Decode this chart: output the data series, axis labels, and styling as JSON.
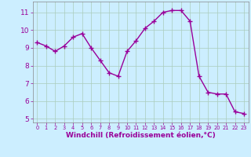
{
  "x": [
    0,
    1,
    2,
    3,
    4,
    5,
    6,
    7,
    8,
    9,
    10,
    11,
    12,
    13,
    14,
    15,
    16,
    17,
    18,
    19,
    20,
    21,
    22,
    23
  ],
  "y": [
    9.3,
    9.1,
    8.8,
    9.1,
    9.6,
    9.8,
    9.0,
    8.3,
    7.6,
    7.4,
    8.8,
    9.4,
    10.1,
    10.5,
    11.0,
    11.1,
    11.1,
    10.5,
    7.4,
    6.5,
    6.4,
    6.4,
    5.4,
    5.3
  ],
  "line_color": "#990099",
  "marker": "+",
  "marker_size": 4,
  "marker_linewidth": 1.0,
  "bg_color": "#cceeff",
  "grid_color": "#aaccbb",
  "xlabel": "Windchill (Refroidissement éolien,°C)",
  "xlabel_color": "#990099",
  "ylim": [
    4.8,
    11.6
  ],
  "yticks": [
    5,
    6,
    7,
    8,
    9,
    10,
    11
  ],
  "xlim": [
    -0.5,
    23.5
  ],
  "xticks": [
    0,
    1,
    2,
    3,
    4,
    5,
    6,
    7,
    8,
    9,
    10,
    11,
    12,
    13,
    14,
    15,
    16,
    17,
    18,
    19,
    20,
    21,
    22,
    23
  ],
  "tick_color": "#990099",
  "ytick_fontsize": 6.5,
  "xtick_fontsize": 4.8,
  "xlabel_fontsize": 6.5,
  "spine_color": "#888888",
  "linewidth": 1.0
}
